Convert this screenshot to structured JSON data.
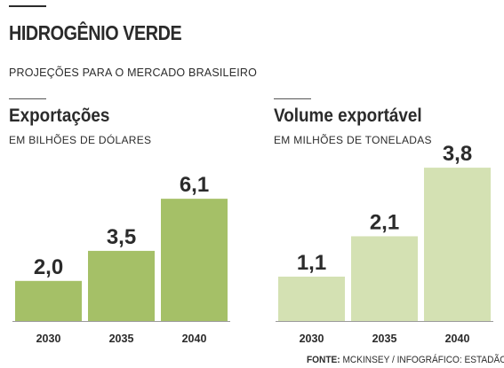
{
  "header": {
    "title": "HIDROGÊNIO VERDE",
    "subtitle": "PROJEÇÕES PARA O MERCADO BRASILEIRO"
  },
  "chart_data": [
    {
      "type": "bar",
      "title": "Exportações",
      "subtitle": "EM BILHÕES DE DÓLARES",
      "categories": [
        "2030",
        "2035",
        "2040"
      ],
      "values": [
        2.0,
        3.5,
        6.1
      ],
      "value_labels": [
        "2,0",
        "3,5",
        "6,1"
      ],
      "color": "#a5c067"
    },
    {
      "type": "bar",
      "title": "Volume exportável",
      "subtitle": "EM MILHÕES DE TONELADAS",
      "categories": [
        "2030",
        "2035",
        "2040"
      ],
      "values": [
        1.1,
        2.1,
        3.8
      ],
      "value_labels": [
        "1,1",
        "2,1",
        "3,8"
      ],
      "color": "#d4e1b3"
    }
  ],
  "footer": {
    "source_label": "FONTE:",
    "source_text": "MCKINSEY  / INFOGRÁFICO: ESTADÃO"
  }
}
